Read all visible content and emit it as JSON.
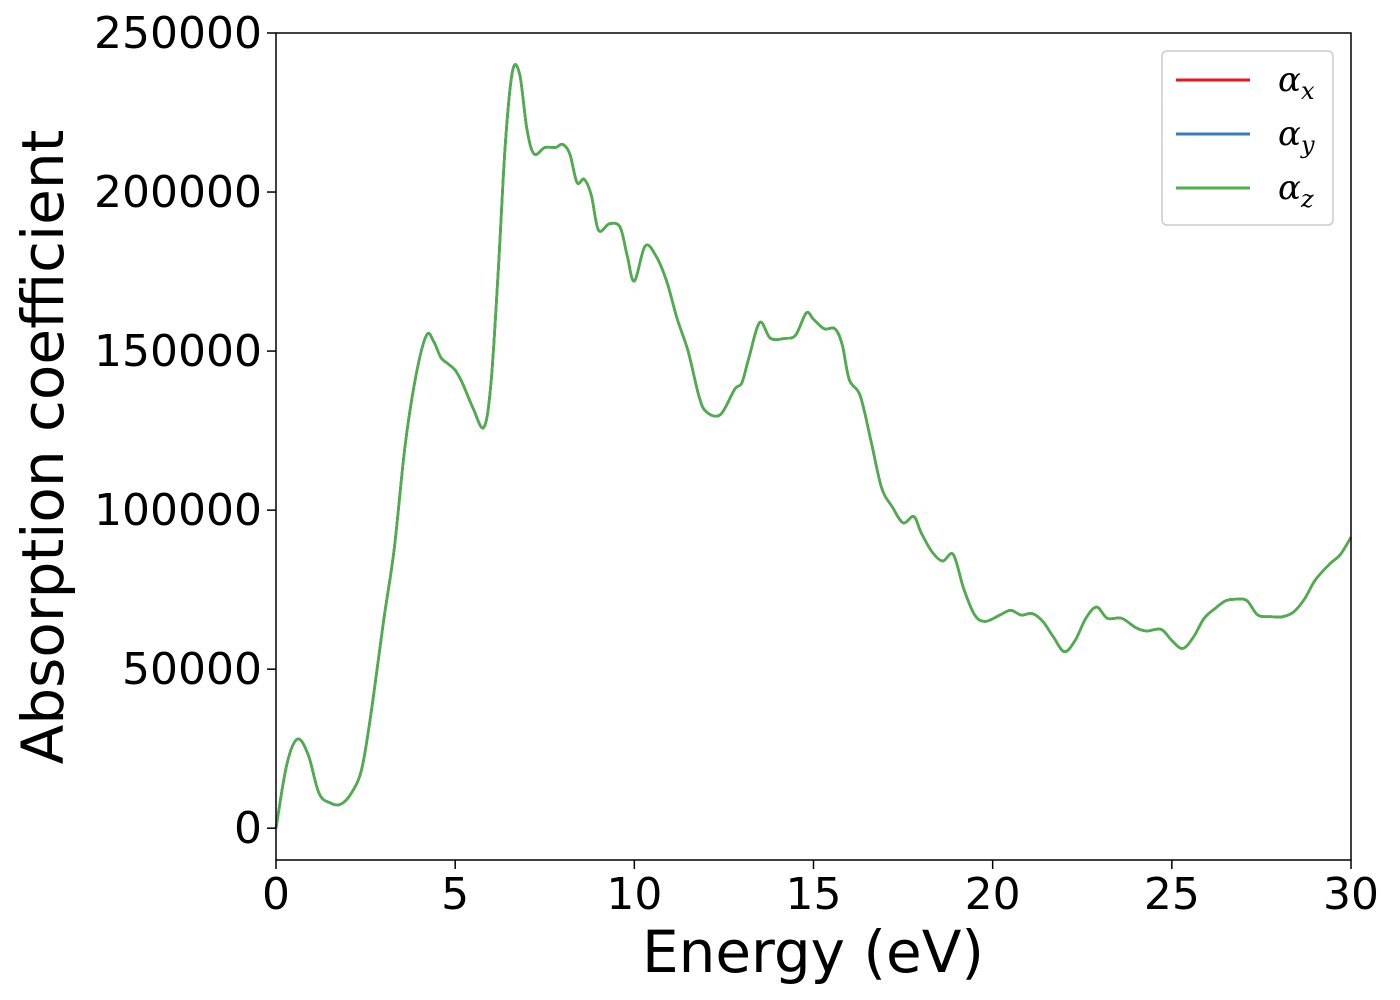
{
  "chart_data": {
    "type": "line",
    "title": "",
    "xlabel": "Energy (eV)",
    "ylabel": "Absorption coefficient",
    "xlim": [
      0,
      30
    ],
    "ylim": [
      -10000,
      250000
    ],
    "xticks": [
      0,
      5,
      10,
      15,
      20,
      25,
      30
    ],
    "xtick_labels": [
      "0",
      "5",
      "10",
      "15",
      "20",
      "25",
      "30"
    ],
    "yticks": [
      0,
      50000,
      100000,
      150000,
      200000,
      250000
    ],
    "ytick_labels": [
      "0",
      "50000",
      "100000",
      "150000",
      "200000",
      "250000"
    ],
    "grid": false,
    "legend_position": "top-right",
    "x": [
      0.0,
      0.3,
      0.6,
      0.9,
      1.2,
      1.5,
      1.8,
      2.1,
      2.4,
      2.7,
      3.0,
      3.3,
      3.6,
      3.9,
      4.2,
      4.4,
      4.6,
      4.8,
      5.0,
      5.2,
      5.5,
      5.8,
      6.0,
      6.2,
      6.4,
      6.6,
      6.8,
      7.0,
      7.2,
      7.5,
      7.8,
      8.0,
      8.2,
      8.4,
      8.6,
      8.8,
      9.0,
      9.3,
      9.6,
      9.8,
      10.0,
      10.3,
      10.6,
      10.9,
      11.2,
      11.5,
      11.8,
      12.0,
      12.4,
      12.8,
      13.0,
      13.2,
      13.5,
      13.8,
      14.2,
      14.5,
      14.8,
      15.0,
      15.3,
      15.6,
      15.8,
      16.0,
      16.3,
      16.6,
      16.9,
      17.2,
      17.5,
      17.8,
      18.0,
      18.3,
      18.6,
      18.9,
      19.2,
      19.5,
      19.8,
      20.2,
      20.5,
      20.8,
      21.1,
      21.4,
      21.7,
      22.0,
      22.3,
      22.6,
      22.9,
      23.2,
      23.6,
      24.0,
      24.3,
      24.7,
      25.0,
      25.3,
      25.6,
      25.9,
      26.2,
      26.5,
      26.8,
      27.1,
      27.4,
      27.8,
      28.1,
      28.4,
      28.7,
      29.0,
      29.4,
      29.7,
      30.0
    ],
    "series": [
      {
        "name": "α_x",
        "label_base": "α",
        "label_sub": "x",
        "color": "#e41a1c",
        "values": [
          0,
          20000,
          28000,
          23000,
          11000,
          8000,
          7500,
          11000,
          19000,
          40000,
          65000,
          88000,
          120000,
          142000,
          155000,
          153000,
          148000,
          146000,
          144000,
          140000,
          132000,
          126000,
          140000,
          175000,
          215000,
          238000,
          237000,
          220000,
          212000,
          214000,
          214000,
          215000,
          212000,
          203000,
          204000,
          199000,
          188000,
          190000,
          189000,
          180000,
          172000,
          183000,
          180000,
          172000,
          160000,
          150000,
          136000,
          131000,
          130000,
          138000,
          140000,
          148000,
          159000,
          154000,
          154000,
          155000,
          162000,
          160000,
          157000,
          157000,
          152000,
          141000,
          136000,
          122000,
          107000,
          101000,
          96000,
          98000,
          93000,
          87000,
          84000,
          86000,
          75000,
          67000,
          65000,
          67000,
          68500,
          67000,
          67500,
          65000,
          60000,
          55500,
          59000,
          66000,
          69500,
          66000,
          66000,
          63000,
          62000,
          62500,
          59000,
          56500,
          60000,
          66000,
          69000,
          71500,
          72000,
          71500,
          67000,
          66500,
          66500,
          68000,
          72000,
          78000,
          83000,
          86000,
          91500
        ]
      },
      {
        "name": "α_y",
        "label_base": "α",
        "label_sub": "y",
        "color": "#377eb8",
        "values": [
          0,
          20000,
          28000,
          23000,
          11000,
          8000,
          7500,
          11000,
          19000,
          40000,
          65000,
          88000,
          120000,
          142000,
          155000,
          153000,
          148000,
          146000,
          144000,
          140000,
          132000,
          126000,
          140000,
          175000,
          215000,
          238000,
          237000,
          220000,
          212000,
          214000,
          214000,
          215000,
          212000,
          203000,
          204000,
          199000,
          188000,
          190000,
          189000,
          180000,
          172000,
          183000,
          180000,
          172000,
          160000,
          150000,
          136000,
          131000,
          130000,
          138000,
          140000,
          148000,
          159000,
          154000,
          154000,
          155000,
          162000,
          160000,
          157000,
          157000,
          152000,
          141000,
          136000,
          122000,
          107000,
          101000,
          96000,
          98000,
          93000,
          87000,
          84000,
          86000,
          75000,
          67000,
          65000,
          67000,
          68500,
          67000,
          67500,
          65000,
          60000,
          55500,
          59000,
          66000,
          69500,
          66000,
          66000,
          63000,
          62000,
          62500,
          59000,
          56500,
          60000,
          66000,
          69000,
          71500,
          72000,
          71500,
          67000,
          66500,
          66500,
          68000,
          72000,
          78000,
          83000,
          86000,
          91500
        ]
      },
      {
        "name": "α_z",
        "label_base": "α",
        "label_sub": "z",
        "color": "#4daf4a",
        "values": [
          0,
          20000,
          28000,
          23000,
          11000,
          8000,
          7500,
          11000,
          19000,
          40000,
          65000,
          88000,
          120000,
          142000,
          155000,
          153000,
          148000,
          146000,
          144000,
          140000,
          132000,
          126000,
          140000,
          175000,
          215000,
          238000,
          237000,
          220000,
          212000,
          214000,
          214000,
          215000,
          212000,
          203000,
          204000,
          199000,
          188000,
          190000,
          189000,
          180000,
          172000,
          183000,
          180000,
          172000,
          160000,
          150000,
          136000,
          131000,
          130000,
          138000,
          140000,
          148000,
          159000,
          154000,
          154000,
          155000,
          162000,
          160000,
          157000,
          157000,
          152000,
          141000,
          136000,
          122000,
          107000,
          101000,
          96000,
          98000,
          93000,
          87000,
          84000,
          86000,
          75000,
          67000,
          65000,
          67000,
          68500,
          67000,
          67500,
          65000,
          60000,
          55500,
          59000,
          66000,
          69500,
          66000,
          66000,
          63000,
          62000,
          62500,
          59000,
          56500,
          60000,
          66000,
          69000,
          71500,
          72000,
          71500,
          67000,
          66500,
          66500,
          68000,
          72000,
          78000,
          83000,
          86000,
          91500
        ]
      }
    ]
  }
}
